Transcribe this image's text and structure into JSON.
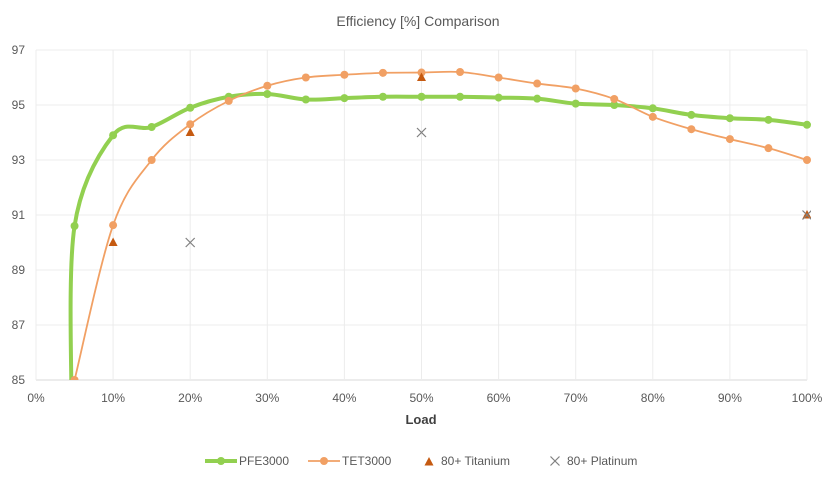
{
  "chart_data": {
    "type": "line",
    "title": "Efficiency [%] Comparison",
    "xlabel": "Load",
    "ylabel": "",
    "xlim": [
      0,
      100
    ],
    "ylim": [
      85,
      97
    ],
    "x_ticks": [
      "0%",
      "10%",
      "20%",
      "30%",
      "40%",
      "50%",
      "60%",
      "70%",
      "80%",
      "90%",
      "100%"
    ],
    "y_ticks": [
      "85",
      "87",
      "89",
      "91",
      "93",
      "95",
      "97"
    ],
    "grid": true,
    "legend_position": "bottom",
    "series": [
      {
        "name": "PFE3000",
        "style": "smooth-line-markers",
        "color": "#92D050",
        "x": [
          4.6,
          5,
          10,
          15,
          20,
          25,
          30,
          35,
          40,
          45,
          50,
          55,
          60,
          65,
          70,
          75,
          80,
          85,
          90,
          95,
          100
        ],
        "values": [
          84.0,
          90.6,
          93.9,
          94.2,
          94.9,
          95.3,
          95.4,
          95.2,
          95.25,
          95.3,
          95.3,
          95.3,
          95.27,
          95.23,
          95.05,
          95.0,
          94.88,
          94.64,
          94.52,
          94.46,
          94.28
        ]
      },
      {
        "name": "TET3000",
        "style": "smooth-line-markers",
        "color": "#F1A064",
        "x": [
          5,
          10,
          15,
          20,
          25,
          30,
          35,
          40,
          45,
          50,
          55,
          60,
          65,
          70,
          75,
          80,
          85,
          90,
          95,
          100
        ],
        "values": [
          85.0,
          90.63,
          93.0,
          94.3,
          95.15,
          95.7,
          96.0,
          96.1,
          96.17,
          96.18,
          96.2,
          96.0,
          95.78,
          95.6,
          95.22,
          94.57,
          94.12,
          93.76,
          93.43,
          93.0
        ]
      },
      {
        "name": "80+ Titanium",
        "style": "triangle-markers",
        "color": "#C55A11",
        "x": [
          10,
          20,
          50,
          100
        ],
        "values": [
          90,
          94,
          96,
          91
        ]
      },
      {
        "name": "80+ Platinum",
        "style": "x-markers",
        "color": "#808080",
        "x": [
          20,
          50,
          100
        ],
        "values": [
          90,
          94,
          91
        ]
      }
    ]
  }
}
